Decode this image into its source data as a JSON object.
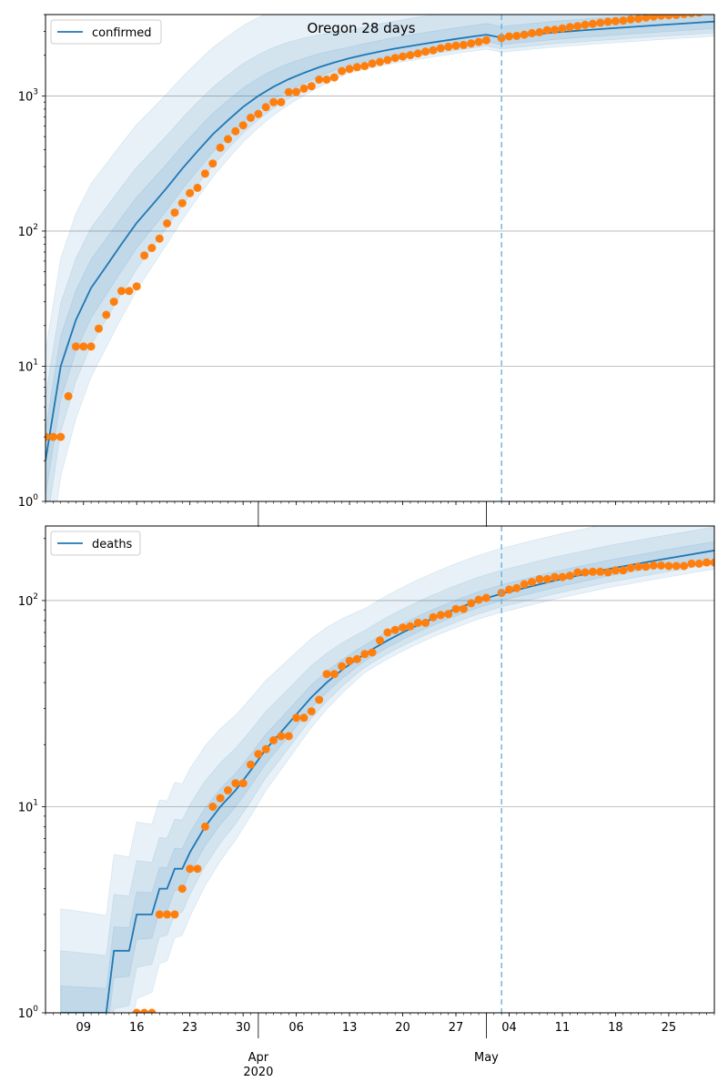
{
  "chart_data": [
    {
      "type": "line",
      "title": "Oregon 28 days",
      "yscale": "log",
      "ylim": [
        1,
        4000
      ],
      "xlim": [
        "2020-03-04",
        "2020-05-31"
      ],
      "grid": "y-major",
      "legend": {
        "placement": "top-left",
        "entries": [
          "confirmed"
        ]
      },
      "forecast_start": "2020-05-03",
      "y_ticks": [
        {
          "value": 1,
          "base": "10",
          "exp": "0"
        },
        {
          "value": 10,
          "base": "10",
          "exp": "1"
        },
        {
          "value": 100,
          "base": "10",
          "exp": "2"
        },
        {
          "value": 1000,
          "base": "10",
          "exp": "3"
        }
      ],
      "series": [
        {
          "name": "confirmed",
          "kind": "model",
          "x": [
            "2020-03-04",
            "2020-03-06",
            "2020-03-08",
            "2020-03-10",
            "2020-03-12",
            "2020-03-14",
            "2020-03-16",
            "2020-03-18",
            "2020-03-20",
            "2020-03-22",
            "2020-03-24",
            "2020-03-26",
            "2020-03-28",
            "2020-03-30",
            "2020-04-01",
            "2020-04-03",
            "2020-04-05",
            "2020-04-07",
            "2020-04-09",
            "2020-04-11",
            "2020-04-13",
            "2020-04-15",
            "2020-04-17",
            "2020-04-19",
            "2020-04-21",
            "2020-04-23",
            "2020-04-25",
            "2020-04-27",
            "2020-04-29",
            "2020-05-01",
            "2020-05-03",
            "2020-05-10",
            "2020-05-17",
            "2020-05-24",
            "2020-05-31"
          ],
          "y": [
            2,
            10,
            22,
            38,
            55,
            80,
            115,
            155,
            210,
            290,
            390,
            520,
            660,
            830,
            1000,
            1170,
            1330,
            1480,
            1630,
            1770,
            1900,
            2020,
            2130,
            2240,
            2340,
            2440,
            2540,
            2640,
            2740,
            2840,
            2700,
            2950,
            3150,
            3350,
            3550
          ]
        },
        {
          "name": "",
          "kind": "observed",
          "x": [
            "2020-03-04",
            "2020-03-05",
            "2020-03-06",
            "2020-03-07",
            "2020-03-08",
            "2020-03-09",
            "2020-03-10",
            "2020-03-11",
            "2020-03-12",
            "2020-03-13",
            "2020-03-14",
            "2020-03-15",
            "2020-03-16",
            "2020-03-17",
            "2020-03-18",
            "2020-03-19",
            "2020-03-20",
            "2020-03-21",
            "2020-03-22",
            "2020-03-23",
            "2020-03-24",
            "2020-03-25",
            "2020-03-26",
            "2020-03-27",
            "2020-03-28",
            "2020-03-29",
            "2020-03-30",
            "2020-03-31",
            "2020-04-01",
            "2020-04-02",
            "2020-04-03",
            "2020-04-04",
            "2020-04-05",
            "2020-04-06",
            "2020-04-07",
            "2020-04-08",
            "2020-04-09",
            "2020-04-10",
            "2020-04-11",
            "2020-04-12",
            "2020-04-13",
            "2020-04-14",
            "2020-04-15",
            "2020-04-16",
            "2020-04-17",
            "2020-04-18",
            "2020-04-19",
            "2020-04-20",
            "2020-04-21",
            "2020-04-22",
            "2020-04-23",
            "2020-04-24",
            "2020-04-25",
            "2020-04-26",
            "2020-04-27",
            "2020-04-28",
            "2020-04-29",
            "2020-04-30",
            "2020-05-01",
            "2020-05-03",
            "2020-05-04",
            "2020-05-05",
            "2020-05-06",
            "2020-05-07",
            "2020-05-08",
            "2020-05-09",
            "2020-05-10",
            "2020-05-11",
            "2020-05-12",
            "2020-05-13",
            "2020-05-14",
            "2020-05-15",
            "2020-05-16",
            "2020-05-17",
            "2020-05-18",
            "2020-05-19",
            "2020-05-20",
            "2020-05-21",
            "2020-05-22",
            "2020-05-23",
            "2020-05-24",
            "2020-05-25",
            "2020-05-26",
            "2020-05-27",
            "2020-05-28",
            "2020-05-29",
            "2020-05-30",
            "2020-05-31"
          ],
          "y": [
            3,
            3,
            3,
            6,
            14,
            14,
            14,
            19,
            24,
            30,
            36,
            36,
            39,
            66,
            75,
            88,
            114,
            137,
            161,
            191,
            209,
            266,
            316,
            414,
            479,
            548,
            606,
            690,
            736,
            826,
            899,
            899,
            1068,
            1071,
            1132,
            1181,
            1321,
            1321,
            1371,
            1527,
            1584,
            1633,
            1663,
            1736,
            1785,
            1844,
            1910,
            1956,
            2002,
            2059,
            2127,
            2177,
            2253,
            2311,
            2354,
            2385,
            2446,
            2510,
            2579,
            2680,
            2759,
            2785,
            2839,
            2916,
            2960,
            3068,
            3086,
            3160,
            3228,
            3286,
            3358,
            3416,
            3479,
            3541,
            3571,
            3612,
            3687,
            3726,
            3801,
            3864,
            3927,
            3949,
            3967,
            4038,
            4086,
            4131,
            4243,
            4302
          ]
        }
      ]
    },
    {
      "type": "line",
      "title": "",
      "yscale": "log",
      "ylim": [
        1,
        230
      ],
      "xlim": [
        "2020-03-04",
        "2020-05-31"
      ],
      "grid": "y-major",
      "legend": {
        "placement": "top-left",
        "entries": [
          "deaths"
        ]
      },
      "forecast_start": "2020-05-03",
      "y_ticks": [
        {
          "value": 1,
          "base": "10",
          "exp": "0"
        },
        {
          "value": 10,
          "base": "10",
          "exp": "1"
        },
        {
          "value": 100,
          "base": "10",
          "exp": "2"
        }
      ],
      "x_ticks": [
        {
          "date": "2020-03-09",
          "label": "09"
        },
        {
          "date": "2020-03-16",
          "label": "16"
        },
        {
          "date": "2020-03-23",
          "label": "23"
        },
        {
          "date": "2020-03-30",
          "label": "30"
        },
        {
          "date": "2020-04-06",
          "label": "06"
        },
        {
          "date": "2020-04-13",
          "label": "13"
        },
        {
          "date": "2020-04-20",
          "label": "20"
        },
        {
          "date": "2020-04-27",
          "label": "27"
        },
        {
          "date": "2020-05-04",
          "label": "04"
        },
        {
          "date": "2020-05-11",
          "label": "11"
        },
        {
          "date": "2020-05-18",
          "label": "18"
        },
        {
          "date": "2020-05-25",
          "label": "25"
        }
      ],
      "x_months": [
        {
          "date": "2020-04-01",
          "label": "Apr",
          "year": "2020"
        },
        {
          "date": "2020-05-01",
          "label": "May",
          "year": ""
        }
      ],
      "series": [
        {
          "name": "deaths",
          "kind": "model",
          "x": [
            "2020-03-06",
            "2020-03-12",
            "2020-03-13",
            "2020-03-15",
            "2020-03-16",
            "2020-03-18",
            "2020-03-19",
            "2020-03-20",
            "2020-03-21",
            "2020-03-22",
            "2020-03-23",
            "2020-03-25",
            "2020-03-27",
            "2020-03-29",
            "2020-03-31",
            "2020-04-02",
            "2020-04-04",
            "2020-04-06",
            "2020-04-08",
            "2020-04-10",
            "2020-04-12",
            "2020-04-14",
            "2020-04-16",
            "2020-04-18",
            "2020-04-20",
            "2020-04-22",
            "2020-04-24",
            "2020-04-26",
            "2020-04-28",
            "2020-04-30",
            "2020-05-03",
            "2020-05-10",
            "2020-05-17",
            "2020-05-24",
            "2020-05-31"
          ],
          "y": [
            1,
            1,
            2,
            2,
            3,
            3,
            4,
            4,
            5,
            5,
            6,
            8,
            10,
            12,
            15,
            19,
            23,
            28,
            34,
            40,
            46,
            52,
            58,
            64,
            70,
            76,
            82,
            88,
            94,
            100,
            108,
            125,
            142,
            158,
            175
          ]
        },
        {
          "name": "",
          "kind": "observed",
          "x": [
            "2020-03-16",
            "2020-03-17",
            "2020-03-18",
            "2020-03-19",
            "2020-03-20",
            "2020-03-21",
            "2020-03-22",
            "2020-03-23",
            "2020-03-24",
            "2020-03-25",
            "2020-03-26",
            "2020-03-27",
            "2020-03-28",
            "2020-03-29",
            "2020-03-30",
            "2020-03-31",
            "2020-04-01",
            "2020-04-02",
            "2020-04-03",
            "2020-04-04",
            "2020-04-05",
            "2020-04-06",
            "2020-04-07",
            "2020-04-08",
            "2020-04-09",
            "2020-04-10",
            "2020-04-11",
            "2020-04-12",
            "2020-04-13",
            "2020-04-14",
            "2020-04-15",
            "2020-04-16",
            "2020-04-17",
            "2020-04-18",
            "2020-04-19",
            "2020-04-20",
            "2020-04-21",
            "2020-04-22",
            "2020-04-23",
            "2020-04-24",
            "2020-04-25",
            "2020-04-26",
            "2020-04-27",
            "2020-04-28",
            "2020-04-29",
            "2020-04-30",
            "2020-05-01",
            "2020-05-03",
            "2020-05-04",
            "2020-05-05",
            "2020-05-06",
            "2020-05-07",
            "2020-05-08",
            "2020-05-09",
            "2020-05-10",
            "2020-05-11",
            "2020-05-12",
            "2020-05-13",
            "2020-05-14",
            "2020-05-15",
            "2020-05-16",
            "2020-05-17",
            "2020-05-18",
            "2020-05-19",
            "2020-05-20",
            "2020-05-21",
            "2020-05-22",
            "2020-05-23",
            "2020-05-24",
            "2020-05-25",
            "2020-05-26",
            "2020-05-27",
            "2020-05-28",
            "2020-05-29",
            "2020-05-30",
            "2020-05-31"
          ],
          "y": [
            1,
            1,
            1,
            3,
            3,
            3,
            4,
            5,
            5,
            8,
            10,
            11,
            12,
            13,
            13,
            16,
            18,
            19,
            21,
            22,
            22,
            27,
            27,
            29,
            33,
            44,
            44,
            48,
            51,
            52,
            55,
            56,
            64,
            70,
            72,
            74,
            75,
            78,
            78,
            83,
            85,
            86,
            91,
            91,
            97,
            101,
            103,
            109,
            113,
            115,
            120,
            123,
            127,
            127,
            130,
            130,
            132,
            137,
            137,
            138,
            138,
            137,
            140,
            140,
            144,
            146,
            146,
            148,
            148,
            147,
            147,
            147,
            151,
            151,
            153,
            153
          ]
        }
      ]
    }
  ],
  "colors": {
    "model": "#1f77b4",
    "observed": "#ff7f0e",
    "band": "#1f77b4",
    "grid": "#b0b0b0",
    "forecast_line": "#6baed6"
  }
}
